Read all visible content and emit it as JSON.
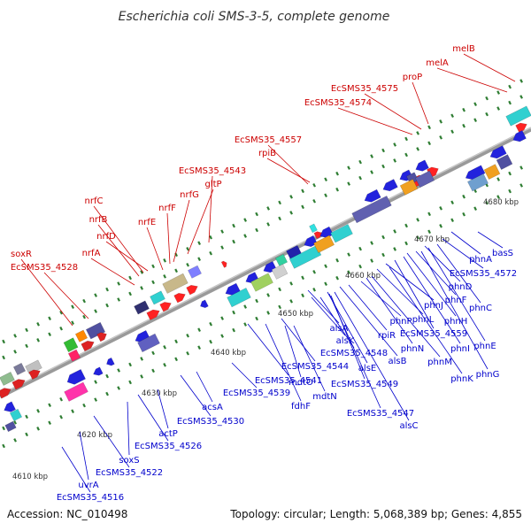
{
  "title": "Escherichia coli SMS-3-5, complete genome",
  "footer": {
    "accession": "Accession: NC_010498",
    "summary": "Topology: circular; Length: 5,068,389 bp; Genes: 4,855"
  },
  "colors": {
    "forward_label": "#cc0000",
    "reverse_label": "#0000cc",
    "backbone": "#a0a0a0",
    "tick": "#2e7d32"
  },
  "kbp_ticks": [
    "4610 kbp",
    "4620 kbp",
    "4630 kbp",
    "4640 kbp",
    "4650 kbp",
    "4660 kbp",
    "4670 kbp",
    "4680 kbp"
  ],
  "forward_labels": [
    "soxR",
    "EcSMS35_4528",
    "nrfA",
    "nrfB",
    "nrfC",
    "nrfD",
    "nrfE",
    "nrfF",
    "nrfG",
    "gltP",
    "EcSMS35_4543",
    "EcSMS35_4557",
    "rpiB",
    "EcSMS35_4574",
    "EcSMS35_4575",
    "proP",
    "melA",
    "melB"
  ],
  "reverse_labels": [
    "EcSMS35_4516",
    "uvrA",
    "EcSMS35_4522",
    "soxS",
    "EcSMS35_4526",
    "actP",
    "EcSMS35_4530",
    "acsA",
    "EcSMS35_4539",
    "EcSMS35_4541",
    "fdhF",
    "EcSMS35_4544",
    "mdtO",
    "mdtN",
    "alsK",
    "alsC",
    "EcSMS35_4547",
    "alsE",
    "EcSMS35_4548",
    "EcSMS35_4549",
    "alsB",
    "alsA",
    "rpiR",
    "phnP",
    "phnN",
    "phnM",
    "phnL",
    "phnK",
    "phnJ",
    "EcSMS35_4559",
    "phnI",
    "phnH",
    "phnG",
    "phnF",
    "phnE",
    "phnD",
    "phnC",
    "EcSMS35_4572",
    "phnA",
    "basS"
  ]
}
